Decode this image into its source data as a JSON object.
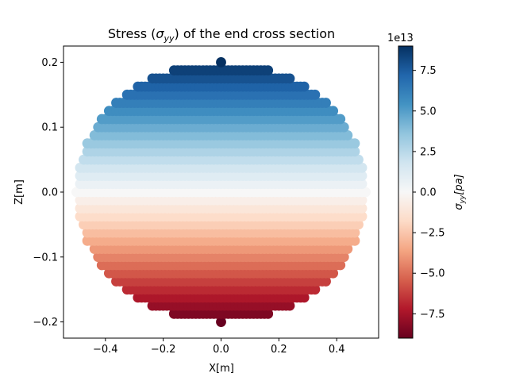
{
  "chart_data": {
    "type": "scatter",
    "title_prefix": "Stress (",
    "title_symbol": "σ",
    "title_subscript": "yy",
    "title_suffix": ") of the end cross section",
    "xlabel": "X[m]",
    "ylabel": "Z[m]",
    "xlim": [
      -0.545,
      0.545
    ],
    "ylim": [
      -0.225,
      0.225
    ],
    "x_ticks": [
      -0.4,
      -0.2,
      0.0,
      0.2,
      0.4
    ],
    "x_tick_labels": [
      "−0.4",
      "−0.2",
      "0.0",
      "0.2",
      "0.4"
    ],
    "y_ticks": [
      -0.2,
      -0.1,
      0.0,
      0.1,
      0.2
    ],
    "y_tick_labels": [
      "−0.2",
      "−0.1",
      "0.0",
      "0.1",
      "0.2"
    ],
    "ellipse": {
      "semi_axis_x": 0.5,
      "semi_axis_z": 0.2,
      "x_step": 0.0125,
      "z_step": 0.0125,
      "stress_coefficient": 450000000000000.0
    },
    "colormap": "RdBu",
    "colorbar": {
      "symbol": "σ",
      "subscript": "yy",
      "unit": "[pa]",
      "min": -90000000000000.0,
      "max": 90000000000000.0,
      "offset_label": "1e13",
      "ticks": [
        -7.5,
        -5.0,
        -2.5,
        0.0,
        2.5,
        5.0,
        7.5
      ],
      "tick_labels": [
        "−7.5",
        "−5.0",
        "−2.5",
        "0.0",
        "2.5",
        "5.0",
        "7.5"
      ]
    },
    "grid": false,
    "legend": "none"
  }
}
